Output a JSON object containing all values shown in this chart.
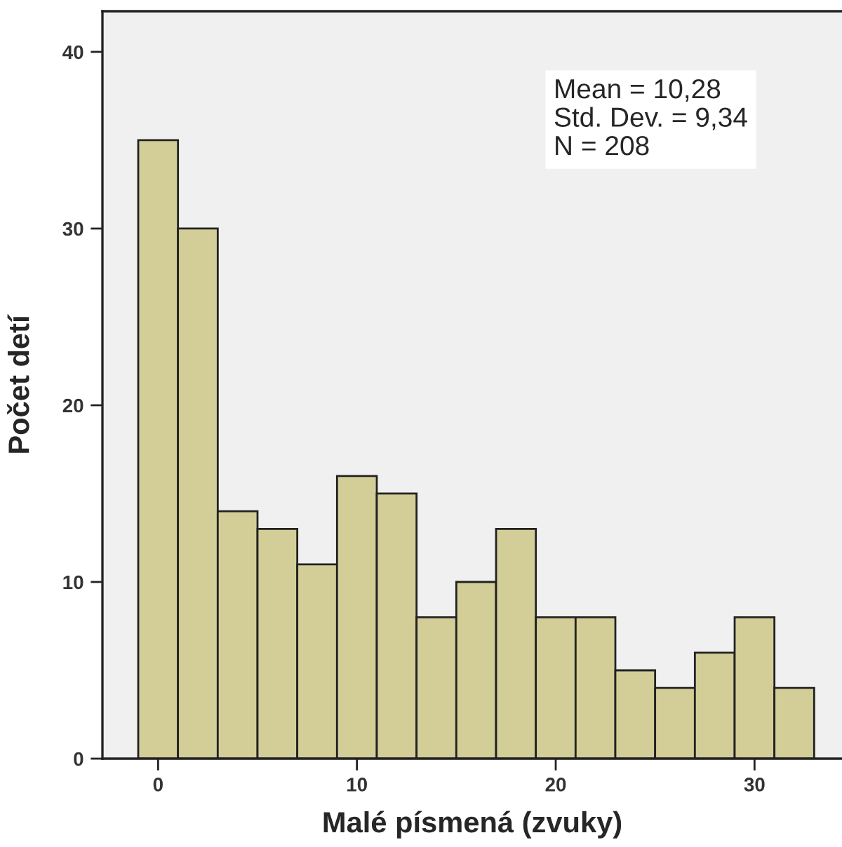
{
  "chart_data": {
    "type": "histogram",
    "xlabel": "Malé písmená (zvuky)",
    "ylabel": "Počet detí",
    "bins": [
      -1,
      1,
      3,
      5,
      7,
      9,
      11,
      13,
      15,
      17,
      19,
      21,
      23,
      25,
      27,
      29,
      31,
      33
    ],
    "values": [
      35,
      30,
      14,
      13,
      11,
      16,
      15,
      8,
      10,
      13,
      8,
      8,
      5,
      4,
      6,
      8,
      4
    ],
    "color": "#d3ce97",
    "xlim": [
      -2.8,
      34.4
    ],
    "ylim": [
      0,
      42.3
    ],
    "xticks": [
      0,
      10,
      20,
      30
    ],
    "yticks": [
      0,
      10,
      20,
      30,
      40
    ],
    "grid": false,
    "annotations": [
      "Mean = 10,28\nStd. Dev. = 9,34\nN = 208"
    ]
  }
}
